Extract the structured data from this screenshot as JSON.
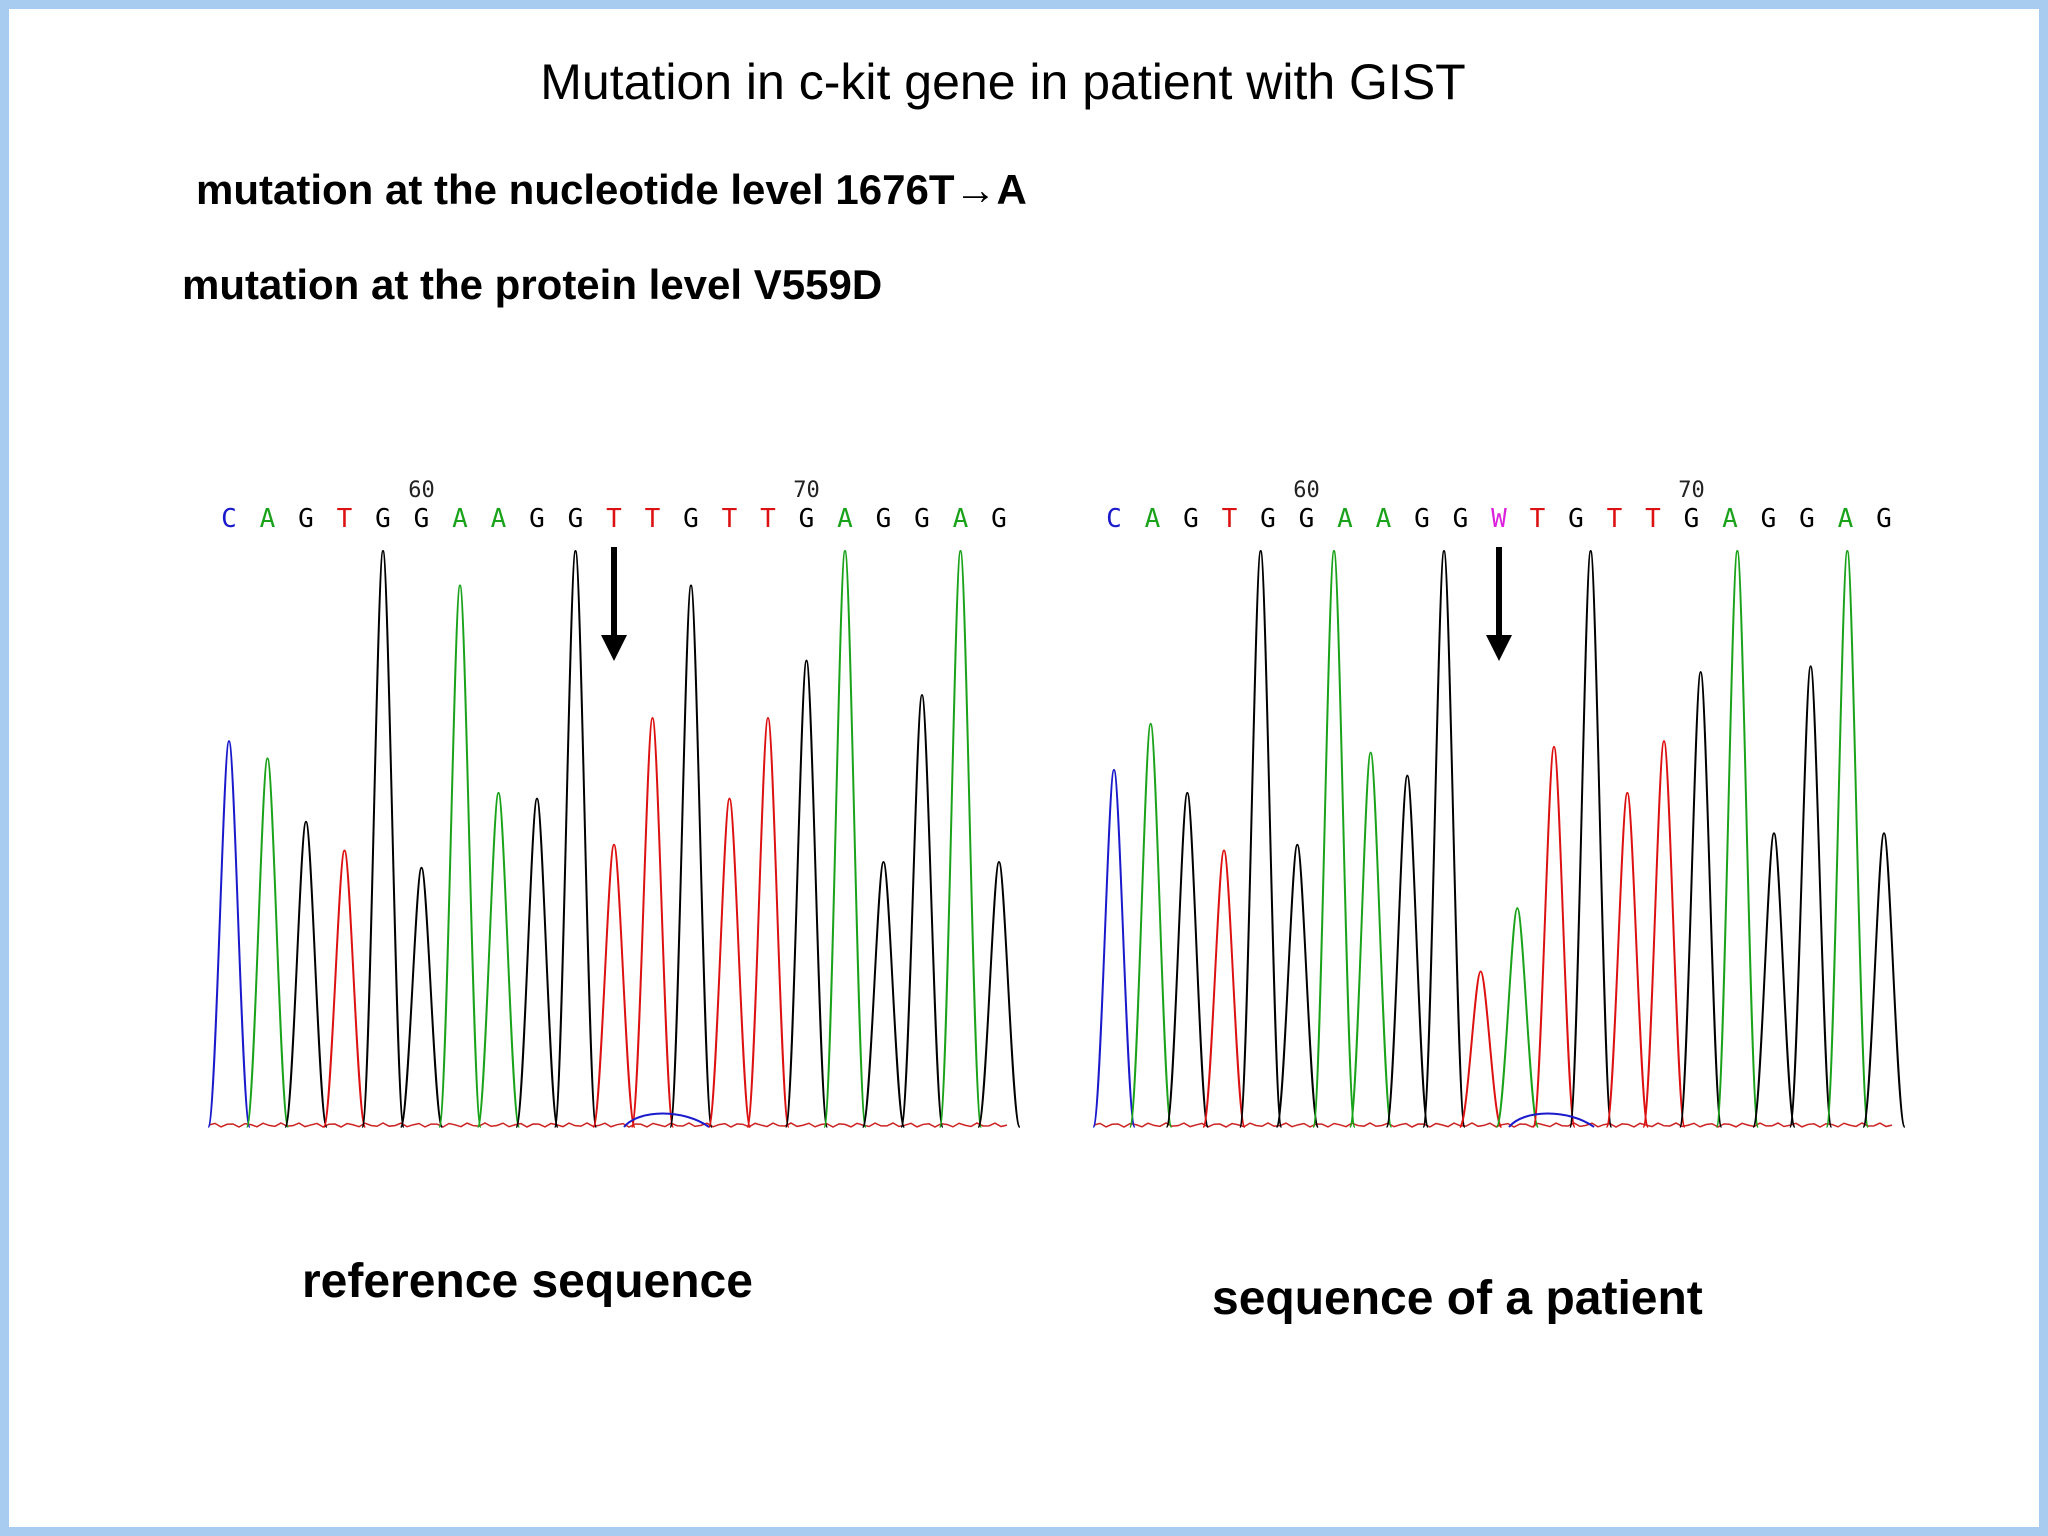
{
  "title": "Mutation in c-kit gene in patient with GIST",
  "nucleotide_line": "mutation at the nucleotide level 1676T→A",
  "protein_line": "mutation at the protein level V559D",
  "colors": {
    "A": "#1aa31a",
    "C": "#1a1acc",
    "G": "#000000",
    "T": "#dd1111",
    "W": "#dd22dd",
    "frame": "#a8ccf0"
  },
  "chromatograms": [
    {
      "caption": "reference sequence",
      "bases": [
        "C",
        "A",
        "G",
        "T",
        "G",
        "G",
        "A",
        "A",
        "G",
        "G",
        "T",
        "T",
        "G",
        "T",
        "T",
        "G",
        "A",
        "G",
        "G",
        "A",
        "G"
      ],
      "position_labels": [
        {
          "index": 5,
          "label": "60"
        },
        {
          "index": 15,
          "label": "70"
        }
      ],
      "arrow_index": 10,
      "peaks": [
        {
          "base": "C",
          "height": 0.67
        },
        {
          "base": "A",
          "height": 0.64
        },
        {
          "base": "G",
          "height": 0.53
        },
        {
          "base": "T",
          "height": 0.48
        },
        {
          "base": "G",
          "height": 1.0
        },
        {
          "base": "G",
          "height": 0.45
        },
        {
          "base": "A",
          "height": 0.94
        },
        {
          "base": "A",
          "height": 0.58
        },
        {
          "base": "G",
          "height": 0.57
        },
        {
          "base": "G",
          "height": 1.0
        },
        {
          "base": "T",
          "height": 0.49
        },
        {
          "base": "T",
          "height": 0.71
        },
        {
          "base": "G",
          "height": 0.94
        },
        {
          "base": "T",
          "height": 0.57
        },
        {
          "base": "T",
          "height": 0.71
        },
        {
          "base": "G",
          "height": 0.81
        },
        {
          "base": "A",
          "height": 1.0
        },
        {
          "base": "G",
          "height": 0.46
        },
        {
          "base": "G",
          "height": 0.75
        },
        {
          "base": "A",
          "height": 1.0
        },
        {
          "base": "G",
          "height": 0.46
        }
      ]
    },
    {
      "caption": "sequence of a patient",
      "bases": [
        "C",
        "A",
        "G",
        "T",
        "G",
        "G",
        "A",
        "A",
        "G",
        "G",
        "W",
        "T",
        "G",
        "T",
        "T",
        "G",
        "A",
        "G",
        "G",
        "A",
        "G"
      ],
      "position_labels": [
        {
          "index": 5,
          "label": "60"
        },
        {
          "index": 15,
          "label": "70"
        }
      ],
      "arrow_index": 10,
      "peaks": [
        {
          "base": "C",
          "height": 0.62
        },
        {
          "base": "A",
          "height": 0.7
        },
        {
          "base": "G",
          "height": 0.58
        },
        {
          "base": "T",
          "height": 0.48
        },
        {
          "base": "G",
          "height": 1.0
        },
        {
          "base": "G",
          "height": 0.49
        },
        {
          "base": "A",
          "height": 1.0
        },
        {
          "base": "A",
          "height": 0.65
        },
        {
          "base": "G",
          "height": 0.61
        },
        {
          "base": "G",
          "height": 1.0
        },
        {
          "base": "T",
          "height": 0.27
        },
        {
          "base": "A",
          "height": 0.38
        },
        {
          "base": "T",
          "height": 0.66
        },
        {
          "base": "G",
          "height": 1.0
        },
        {
          "base": "T",
          "height": 0.58
        },
        {
          "base": "T",
          "height": 0.67
        },
        {
          "base": "G",
          "height": 0.79
        },
        {
          "base": "A",
          "height": 1.0
        },
        {
          "base": "G",
          "height": 0.51
        },
        {
          "base": "G",
          "height": 0.8
        },
        {
          "base": "A",
          "height": 1.0
        },
        {
          "base": "G",
          "height": 0.51
        }
      ]
    }
  ]
}
